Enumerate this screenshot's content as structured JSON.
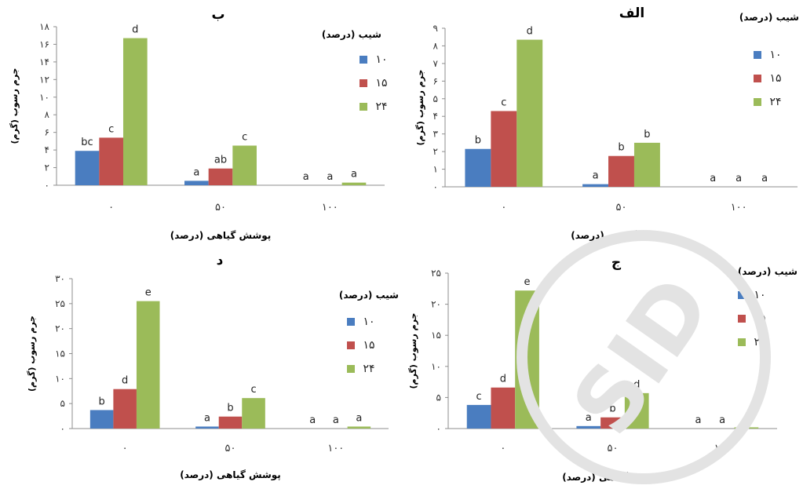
{
  "watermark": "SID",
  "colors": {
    "s10": "#4a7dc0",
    "s15": "#c0504d",
    "s24": "#9bbb59",
    "axis": "#8e8e8e"
  },
  "chart_data": [
    {
      "type": "bar",
      "title": "ب",
      "xlabel": "پوشش گیاهی (درصد)",
      "ylabel": "جرم رسوب (گرم)",
      "legend_title": "شیب (درصد)",
      "legend_position": "right",
      "categories": [
        "۰",
        "۵۰",
        "۱۰۰"
      ],
      "yticks": [
        "۰",
        "۲",
        "۴",
        "۶",
        "۸",
        "۱۰",
        "۱۲",
        "۱۴",
        "۱۶",
        "۱۸"
      ],
      "ylim": [
        0,
        18
      ],
      "series": [
        {
          "name": "۱۰",
          "values": [
            3.9,
            0.5,
            0
          ],
          "labels": [
            "bc",
            "a",
            "a"
          ]
        },
        {
          "name": "۱۵",
          "values": [
            5.4,
            1.9,
            0
          ],
          "labels": [
            "c",
            "ab",
            "a"
          ]
        },
        {
          "name": "۲۴",
          "values": [
            16.7,
            4.5,
            0.3
          ],
          "labels": [
            "d",
            "c",
            "a"
          ]
        }
      ]
    },
    {
      "type": "bar",
      "title": "الف",
      "xlabel": "پوشش گیاهی (درصد)",
      "ylabel": "جرم رسوب (گرم)",
      "legend_title": "شیب (درصد)",
      "legend_position": "right",
      "categories": [
        "۰",
        "۵۰",
        "۱۰۰"
      ],
      "yticks": [
        "۰",
        "۱",
        "۲",
        "۳",
        "۴",
        "۵",
        "۶",
        "۷",
        "۸",
        "۹"
      ],
      "ylim": [
        0,
        9
      ],
      "series": [
        {
          "name": "۱۰",
          "values": [
            2.15,
            0.15,
            0
          ],
          "labels": [
            "b",
            "a",
            "a"
          ]
        },
        {
          "name": "۱۵",
          "values": [
            4.3,
            1.75,
            0
          ],
          "labels": [
            "c",
            "b",
            "a"
          ]
        },
        {
          "name": "۲۴",
          "values": [
            8.35,
            2.5,
            0
          ],
          "labels": [
            "d",
            "b",
            "a"
          ]
        }
      ]
    },
    {
      "type": "bar",
      "title": "د",
      "xlabel": "پوشش گیاهی (درصد)",
      "ylabel": "جرم رسوب (گرم)",
      "legend_title": "شیب (درصد)",
      "legend_position": "right",
      "categories": [
        "۰",
        "۵۰",
        "۱۰۰"
      ],
      "yticks": [
        "۰",
        "۵",
        "۱۰",
        "۱۵",
        "۲۰",
        "۲۵",
        "۳۰"
      ],
      "ylim": [
        0,
        30
      ],
      "series": [
        {
          "name": "۱۰",
          "values": [
            3.7,
            0.4,
            0
          ],
          "labels": [
            "b",
            "a",
            "a"
          ]
        },
        {
          "name": "۱۵",
          "values": [
            7.9,
            2.4,
            0
          ],
          "labels": [
            "d",
            "b",
            "a"
          ]
        },
        {
          "name": "۲۴",
          "values": [
            25.5,
            6.1,
            0.4
          ],
          "labels": [
            "e",
            "c",
            "a"
          ]
        }
      ]
    },
    {
      "type": "bar",
      "title": "ج",
      "xlabel": "پوشش گیاهی (درصد)",
      "ylabel": "جرم رسوب (گرم)",
      "legend_title": "شیب (درصد)",
      "legend_position": "right",
      "categories": [
        "۰",
        "۵۰",
        "۱۰۰"
      ],
      "yticks": [
        "۰",
        "۵",
        "۱۰",
        "۱۵",
        "۲۰",
        "۲۵"
      ],
      "ylim": [
        0,
        25
      ],
      "series": [
        {
          "name": "۱۰",
          "values": [
            3.8,
            0.4,
            0
          ],
          "labels": [
            "c",
            "a",
            "a"
          ]
        },
        {
          "name": "۱۵",
          "values": [
            6.6,
            1.8,
            0
          ],
          "labels": [
            "d",
            "b",
            "a"
          ]
        },
        {
          "name": "۲۴",
          "values": [
            22.2,
            5.7,
            0.2
          ],
          "labels": [
            "e",
            "d",
            "a"
          ]
        }
      ]
    }
  ]
}
